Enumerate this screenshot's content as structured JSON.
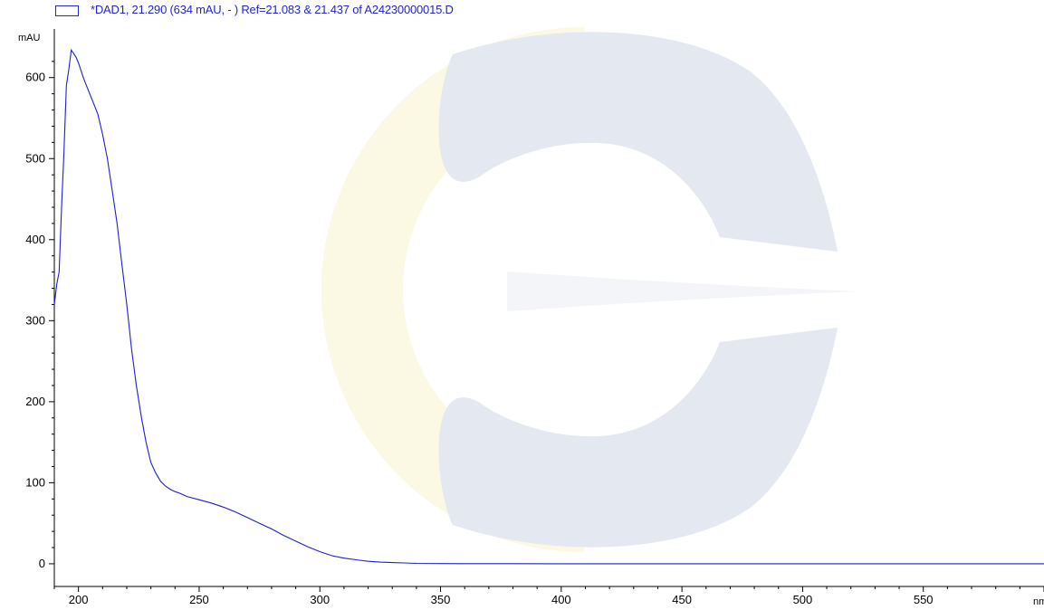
{
  "legend": {
    "text": "*DAD1, 21.290 (634 mAU, - ) Ref=21.083 & 21.437 of A24230000015.D",
    "color": "#2323d0"
  },
  "watermark": {
    "icon": "company-logo-watermark",
    "colors": [
      "#e4e9f1",
      "#fbf8e4"
    ]
  },
  "chart_data": {
    "type": "line",
    "ylabel": "mAU",
    "xlabel": "nm",
    "xlim": [
      190,
      600
    ],
    "ylim": [
      -28,
      660
    ],
    "x_ticks": [
      200,
      250,
      300,
      350,
      400,
      450,
      500,
      550
    ],
    "y_ticks": [
      0,
      100,
      200,
      300,
      400,
      500,
      600
    ],
    "x_tick_labels": [
      "200",
      "250",
      "300",
      "350",
      "400",
      "450",
      "500",
      "550"
    ],
    "y_tick_labels": [
      "0",
      "100",
      "200",
      "300",
      "400",
      "500",
      "600"
    ],
    "grid": false,
    "line_color": "#1f1fd0",
    "series": [
      {
        "name": "*DAD1, 21.290 (634 mAU, - ) Ref=21.083 & 21.437 of A24230000015.D",
        "x": [
          190,
          191,
          192,
          193,
          194,
          195,
          196,
          197,
          198,
          199,
          200,
          202,
          204,
          206,
          208,
          210,
          212,
          214,
          216,
          218,
          220,
          222,
          224,
          226,
          228,
          230,
          232,
          234,
          236,
          238,
          240,
          242,
          245,
          250,
          255,
          260,
          265,
          270,
          275,
          280,
          285,
          290,
          295,
          300,
          305,
          310,
          315,
          320,
          325,
          330,
          335,
          340,
          350,
          360,
          380,
          400,
          450,
          500,
          550,
          600
        ],
        "y": [
          320,
          345,
          360,
          440,
          510,
          590,
          610,
          634,
          630,
          625,
          618,
          600,
          585,
          570,
          555,
          530,
          500,
          460,
          420,
          370,
          320,
          265,
          220,
          182,
          150,
          125,
          112,
          102,
          96,
          92,
          89,
          87,
          83,
          79,
          75,
          70,
          64,
          57,
          50,
          43,
          35,
          28,
          21,
          15,
          10,
          7,
          5,
          3,
          2,
          1.5,
          1,
          0.5,
          0.3,
          0.2,
          0.1,
          0,
          0,
          0,
          0,
          0
        ]
      }
    ]
  }
}
